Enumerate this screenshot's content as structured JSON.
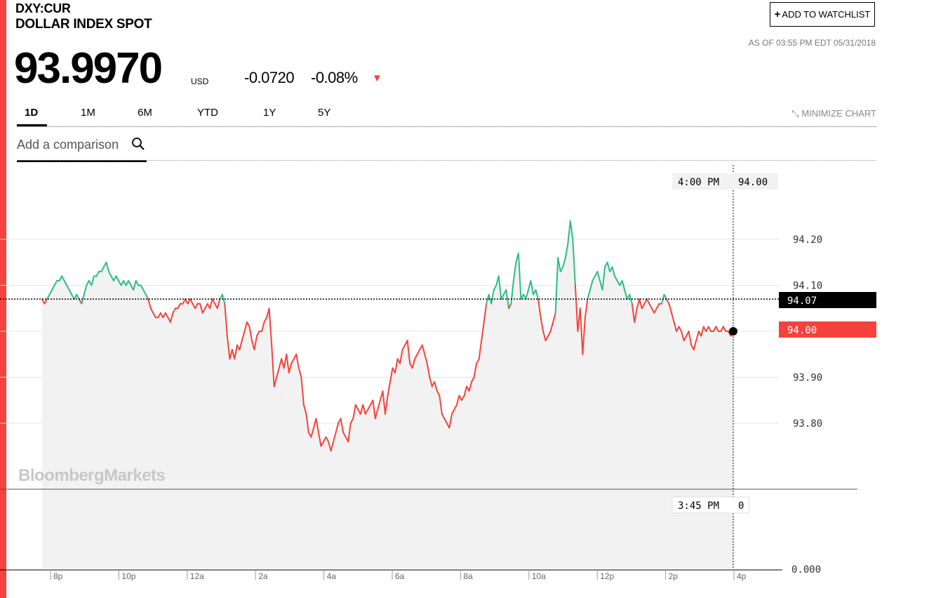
{
  "header": {
    "ticker": "DXY:CUR",
    "name": "DOLLAR INDEX SPOT",
    "price": "93.9970",
    "currency": "USD",
    "change": "-0.0720",
    "change_pct": "-0.08%",
    "as_of": "AS OF 03:55 PM EDT 05/31/2018",
    "watchlist_label": "ADD TO WATCHLIST",
    "accent_color": "#f6423c"
  },
  "tabs": [
    {
      "label": "1D",
      "active": true
    },
    {
      "label": "1M",
      "active": false
    },
    {
      "label": "6M",
      "active": false
    },
    {
      "label": "YTD",
      "active": false
    },
    {
      "label": "1Y",
      "active": false
    },
    {
      "label": "5Y",
      "active": false
    }
  ],
  "minimize_label": "MINIMIZE CHART",
  "comparison": {
    "placeholder": "Add a comparison"
  },
  "watermark": "BloombergMarkets",
  "chart_data": {
    "type": "line",
    "ylim": [
      93.75,
      94.27
    ],
    "y_ticks": [
      "94.20",
      "94.10",
      "93.90",
      "93.80"
    ],
    "x_ticks": [
      "8p",
      "10p",
      "12a",
      "2a",
      "4a",
      "6a",
      "8a",
      "10a",
      "12p",
      "2p",
      "4p"
    ],
    "reference_value": 94.07,
    "reference_label": "94.07",
    "last_value": 94.0,
    "last_label": "94.00",
    "cursor_time_label": "4:00 PM",
    "cursor_value_label": "94.00",
    "volume_time_label": "3:45 PM",
    "volume_value_label": "0",
    "volume_axis_label": "0.000",
    "up_color": "#2ebd85",
    "down_color": "#f6423c",
    "series": [
      {
        "values": [
          94.07,
          94.06,
          94.07,
          94.08,
          94.09,
          94.1,
          94.11,
          94.11,
          94.12,
          94.11,
          94.1,
          94.09,
          94.08,
          94.07,
          94.08,
          94.07,
          94.06,
          94.08,
          94.1,
          94.11,
          94.1,
          94.12,
          94.12,
          94.13,
          94.13,
          94.14,
          94.15,
          94.13,
          94.12,
          94.11,
          94.12,
          94.11,
          94.1,
          94.11,
          94.1,
          94.11,
          94.1,
          94.09,
          94.11,
          94.1,
          94.1,
          94.09,
          94.08,
          94.07,
          94.05,
          94.04,
          94.03,
          94.03,
          94.04,
          94.03,
          94.04,
          94.03,
          94.02,
          94.04,
          94.05,
          94.05,
          94.06,
          94.06,
          94.07,
          94.06,
          94.07,
          94.06,
          94.05,
          94.06,
          94.06,
          94.04,
          94.05,
          94.06,
          94.05,
          94.07,
          94.06,
          94.05,
          94.07,
          94.08,
          94.06,
          93.99,
          93.94,
          93.96,
          93.94,
          93.97,
          93.96,
          93.98,
          94.0,
          94.02,
          94.01,
          93.98,
          93.96,
          93.99,
          94.0,
          94.0,
          94.02,
          94.03,
          94.05,
          93.97,
          93.88,
          93.9,
          93.92,
          93.94,
          93.92,
          93.95,
          93.91,
          93.93,
          93.94,
          93.95,
          93.92,
          93.9,
          93.84,
          93.82,
          93.78,
          93.77,
          93.79,
          93.81,
          93.78,
          93.75,
          93.76,
          93.77,
          93.76,
          93.74,
          93.76,
          93.78,
          93.8,
          93.81,
          93.78,
          93.77,
          93.76,
          93.8,
          93.81,
          93.84,
          93.83,
          93.82,
          93.84,
          93.82,
          93.83,
          93.84,
          93.85,
          93.81,
          93.83,
          93.85,
          93.87,
          93.82,
          93.86,
          93.89,
          93.92,
          93.91,
          93.94,
          93.93,
          93.96,
          93.97,
          93.98,
          93.93,
          93.92,
          93.94,
          93.95,
          93.96,
          93.97,
          93.95,
          93.93,
          93.9,
          93.88,
          93.89,
          93.87,
          93.86,
          93.82,
          93.81,
          93.8,
          93.79,
          93.82,
          93.83,
          93.84,
          93.86,
          93.85,
          93.86,
          93.88,
          93.87,
          93.89,
          93.9,
          93.93,
          93.94,
          93.98,
          94.02,
          94.06,
          94.08,
          94.06,
          94.09,
          94.1,
          94.12,
          94.07,
          94.08,
          94.09,
          94.05,
          94.06,
          94.11,
          94.15,
          94.17,
          94.07,
          94.08,
          94.07,
          94.09,
          94.11,
          94.08,
          94.09,
          94.07,
          94.03,
          94.0,
          93.98,
          93.99,
          94.0,
          94.02,
          94.04,
          94.16,
          94.13,
          94.14,
          94.16,
          94.19,
          94.24,
          94.2,
          94.1,
          94.0,
          94.05,
          93.95,
          94.03,
          94.07,
          94.09,
          94.11,
          94.12,
          94.13,
          94.11,
          94.09,
          94.14,
          94.15,
          94.13,
          94.14,
          94.12,
          94.11,
          94.1,
          94.11,
          94.09,
          94.07,
          94.08,
          94.06,
          94.02,
          94.05,
          94.07,
          94.05,
          94.06,
          94.07,
          94.06,
          94.05,
          94.04,
          94.05,
          94.06,
          94.06,
          94.08,
          94.07,
          94.06,
          94.04,
          94.02,
          94.0,
          94.01,
          94.0,
          93.98,
          93.99,
          94.0,
          93.97,
          93.96,
          93.98,
          94.0,
          93.99,
          94.01,
          94.0,
          94.01,
          94.0,
          94.0,
          94.01,
          94.0,
          94.0,
          94.01,
          94.0,
          94.0,
          93.99,
          94.0
        ]
      }
    ]
  }
}
